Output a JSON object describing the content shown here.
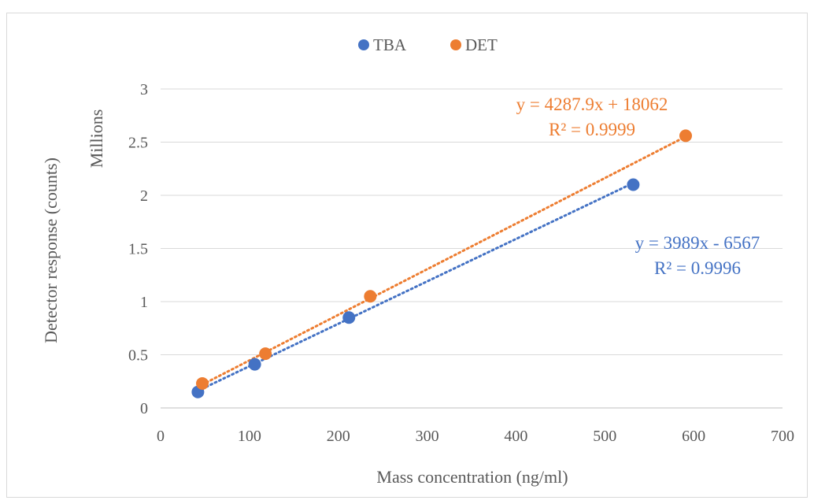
{
  "chart_data": {
    "type": "scatter",
    "title": "",
    "xlabel": "Mass concentration (ng/ml)",
    "ylabel": "Detector response (counts)",
    "y_unit_label": "Millions",
    "xlim": [
      0,
      700
    ],
    "ylim": [
      0,
      3
    ],
    "x_ticks": [
      0,
      100,
      200,
      300,
      400,
      500,
      600,
      700
    ],
    "y_ticks": [
      0,
      0.5,
      1,
      1.5,
      2,
      2.5,
      3
    ],
    "y_tick_labels": [
      "0",
      "0.5",
      "1",
      "1.5",
      "2",
      "2.5",
      "3"
    ],
    "grid": "horizontal",
    "legend_position": "top",
    "series": [
      {
        "name": "TBA",
        "color": "#4472c4",
        "x": [
          42,
          106,
          212,
          532
        ],
        "y": [
          0.15,
          0.41,
          0.85,
          2.1
        ],
        "trendline": {
          "slope": 3989,
          "intercept": -6567,
          "scale": 1000000,
          "x_range": [
            42,
            532
          ]
        },
        "equation": "y = 3989x - 6567",
        "r_squared": "R² = 0.9996"
      },
      {
        "name": "DET",
        "color": "#ed7d31",
        "x": [
          47,
          118,
          236,
          591
        ],
        "y": [
          0.23,
          0.51,
          1.05,
          2.56
        ],
        "trendline": {
          "slope": 4287.9,
          "intercept": 18062,
          "scale": 1000000,
          "x_range": [
            47,
            591
          ]
        },
        "equation": "y = 4287.9x + 18062",
        "r_squared": "R² = 0.9999"
      }
    ]
  }
}
